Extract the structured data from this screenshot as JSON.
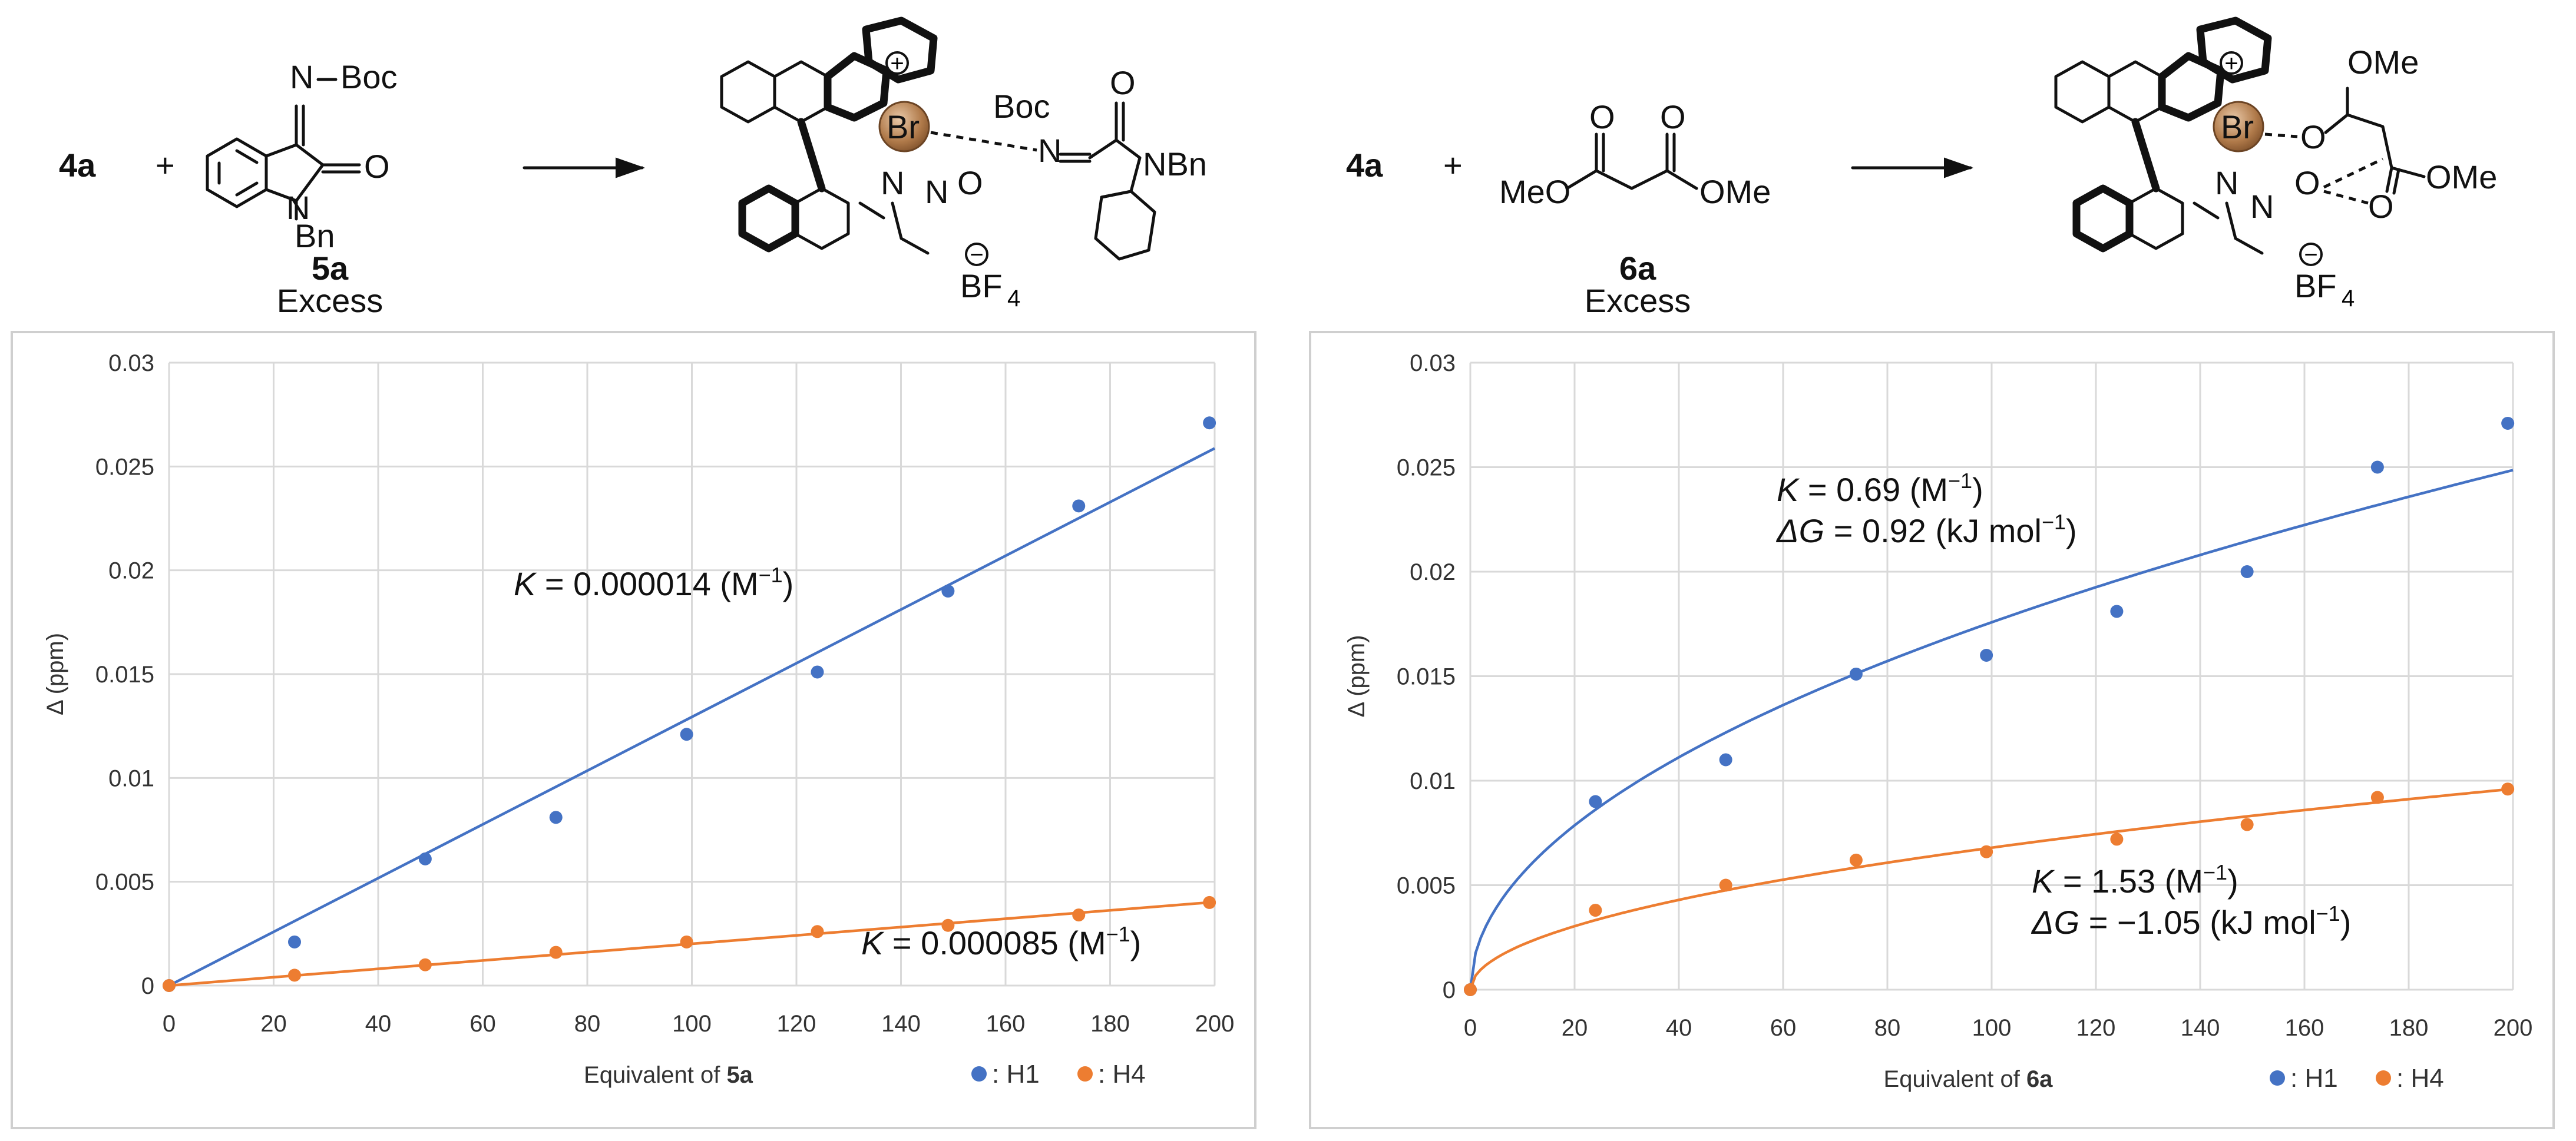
{
  "scheme": {
    "left": {
      "reactant_a": "4a",
      "plus": "+",
      "reactant_b_label": "5a",
      "reactant_b_note": "Excess",
      "sub_n_boc": "N",
      "sub_boc": "Boc",
      "sub_o": "O",
      "sub_n": "N",
      "sub_bn": "Bn",
      "prod_br": "Br",
      "prod_charge": "+",
      "prod_boc": "Boc",
      "prod_n_imine": "N",
      "prod_o": "O",
      "prod_nbn": "NBn",
      "prod_n_amine": "N",
      "prod_n_nitroso": "N",
      "prod_o_nitroso": "O",
      "prod_anion_charge": "−",
      "prod_anion": "BF",
      "prod_anion_sub": "4"
    },
    "right": {
      "reactant_a": "4a",
      "plus": "+",
      "reactant_b_label": "6a",
      "reactant_b_note": "Excess",
      "sub_o1": "O",
      "sub_o2": "O",
      "sub_meo": "MeO",
      "sub_ome": "OMe",
      "prod_br": "Br",
      "prod_charge": "+",
      "prod_ome_top": "OMe",
      "prod_ome_right": "OMe",
      "prod_o1": "O",
      "prod_o2": "O",
      "prod_o3": "O",
      "prod_n_amine": "N",
      "prod_n_nitroso": "N",
      "prod_anion_charge": "−",
      "prod_anion": "BF",
      "prod_anion_sub": "4"
    }
  },
  "chart_data": [
    {
      "type": "scatter",
      "xlabel_prefix": "Equivalent of ",
      "xlabel_bold": "5a",
      "ylabel": "Δ (ppm)",
      "xlim": [
        0,
        200
      ],
      "ylim": [
        0,
        0.03
      ],
      "xticks": [
        "0",
        "20",
        "40",
        "60",
        "80",
        "100",
        "120",
        "140",
        "160",
        "180",
        "200"
      ],
      "yticks": [
        "0",
        "0.005",
        "0.01",
        "0.015",
        "0.02",
        "0.025",
        "0.03"
      ],
      "grid": true,
      "legend_position": "bottom-right",
      "series": [
        {
          "name": ": H1",
          "color": "#4472C4",
          "fit": "linear",
          "x": [
            0,
            24,
            49,
            74,
            99,
            124,
            149,
            174,
            199
          ],
          "y": [
            0,
            0.0021,
            0.0061,
            0.0081,
            0.0121,
            0.0151,
            0.019,
            0.0231,
            0.0271
          ]
        },
        {
          "name": ": H4",
          "color": "#ED7D31",
          "fit": "linear",
          "x": [
            0,
            24,
            49,
            74,
            99,
            124,
            149,
            174,
            199
          ],
          "y": [
            0,
            0.0005,
            0.001,
            0.0016,
            0.0021,
            0.0026,
            0.0029,
            0.0034,
            0.004
          ]
        }
      ],
      "annotations": [
        {
          "italic": "K",
          "text": " = 0.000014 (M",
          "sup": "−1",
          "close": ")"
        },
        {
          "italic": "K",
          "text": " = 0.000085 (M",
          "sup": "−1",
          "close": ")"
        }
      ]
    },
    {
      "type": "scatter",
      "xlabel_prefix": "Equivalent of ",
      "xlabel_bold": "6a",
      "ylabel": "Δ (ppm)",
      "xlim": [
        0,
        200
      ],
      "ylim": [
        0,
        0.03
      ],
      "xticks": [
        "0",
        "20",
        "40",
        "60",
        "80",
        "100",
        "120",
        "140",
        "160",
        "180",
        "200"
      ],
      "yticks": [
        "0",
        "0.005",
        "0.01",
        "0.015",
        "0.02",
        "0.025",
        "0.03"
      ],
      "grid": true,
      "legend_position": "bottom-right",
      "series": [
        {
          "name": ": H1",
          "color": "#4472C4",
          "fit": "binding",
          "x": [
            0,
            24,
            49,
            74,
            99,
            124,
            149,
            174,
            199
          ],
          "y": [
            0,
            0.009,
            0.011,
            0.0151,
            0.016,
            0.0181,
            0.02,
            0.025,
            0.0271
          ]
        },
        {
          "name": ": H4",
          "color": "#ED7D31",
          "fit": "binding",
          "x": [
            0,
            24,
            49,
            74,
            99,
            124,
            149,
            174,
            199
          ],
          "y": [
            0,
            0.0038,
            0.005,
            0.0062,
            0.0066,
            0.0072,
            0.0079,
            0.0092,
            0.0096
          ]
        }
      ],
      "annotations": [
        {
          "italic": "K",
          "text": " = 0.69 (M",
          "sup": "−1",
          "close": ")"
        },
        {
          "italic": "ΔG",
          "text": " = 0.92 (kJ mol",
          "sup": "−1",
          "close": ")"
        },
        {
          "italic": "K",
          "text": " = 1.53 (M",
          "sup": "−1",
          "close": ")"
        },
        {
          "italic": "ΔG",
          "text": " = −1.05 (kJ mol",
          "sup": "−1",
          "close": ")"
        }
      ]
    }
  ]
}
